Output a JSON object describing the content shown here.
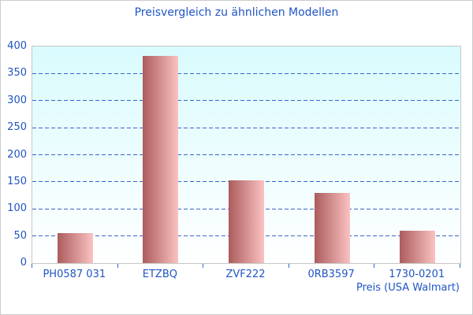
{
  "page": {
    "frame_border_color": "#cccccc",
    "background": "#ffffff"
  },
  "chart_data": {
    "type": "bar",
    "title": "Preisvergleich zu ähnlichen Modellen",
    "categories": [
      "PH0587 031",
      "ETZBQ",
      "ZVF222",
      "0RB3597",
      "1730-0201"
    ],
    "values": [
      56,
      383,
      153,
      130,
      60
    ],
    "xlabel": "Preis (USA Walmart)",
    "ylabel": "",
    "ylim": [
      0,
      400
    ],
    "yticks": [
      0,
      50,
      100,
      150,
      200,
      250,
      300,
      350,
      400
    ],
    "grid": "horizontal-dashed",
    "legend": "none",
    "colors": {
      "title_text": "#1f55c5",
      "axis_text": "#1f55c5",
      "gridline": "#3b64c6",
      "tick": "#2e62d9",
      "bar_gradient_left": "#ac5c5c",
      "bar_gradient_right": "#fbc2c2",
      "plot_bg_top": "#d9fbfd",
      "plot_bg_bottom": "#ffffff",
      "plot_border": "#c6c6c6"
    }
  }
}
